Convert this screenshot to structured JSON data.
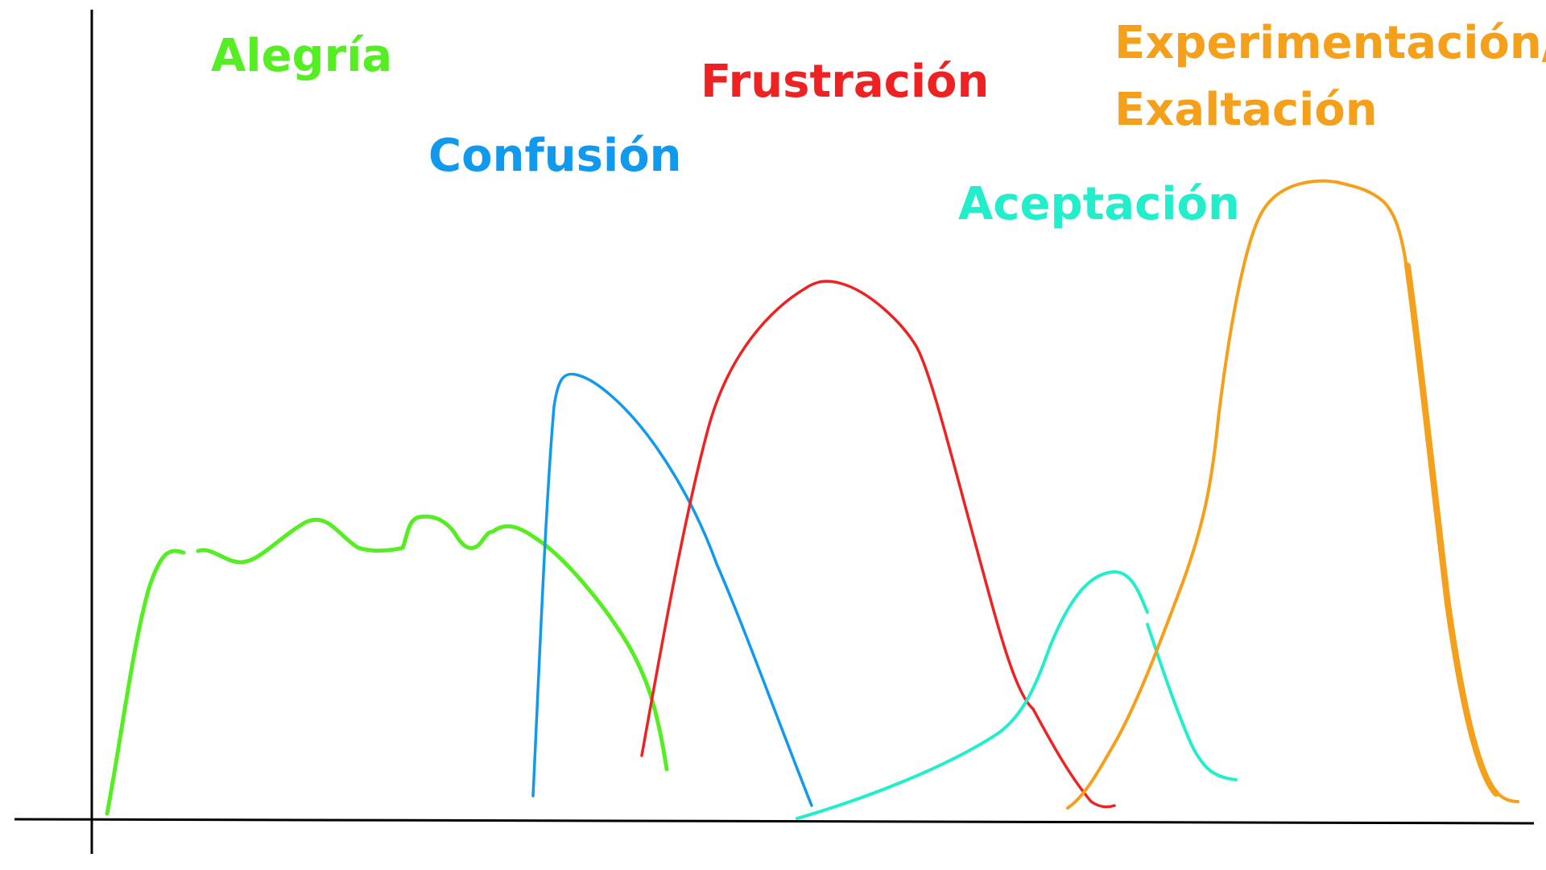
{
  "colors": {
    "background": "#ffffff",
    "axis": "#000000",
    "alegria": "#55ee22",
    "confusion": "#1199ee",
    "frustracion": "#ee2222",
    "aceptacion": "#22eecc",
    "experimentacion": "#f5a01a"
  },
  "labels": {
    "alegria": "Alegría",
    "confusion": "Confusión",
    "frustracion": "Frustración",
    "aceptacion": "Aceptación",
    "experimentacion_line1": "Experimentación/",
    "experimentacion_line2": "Exaltación"
  }
}
